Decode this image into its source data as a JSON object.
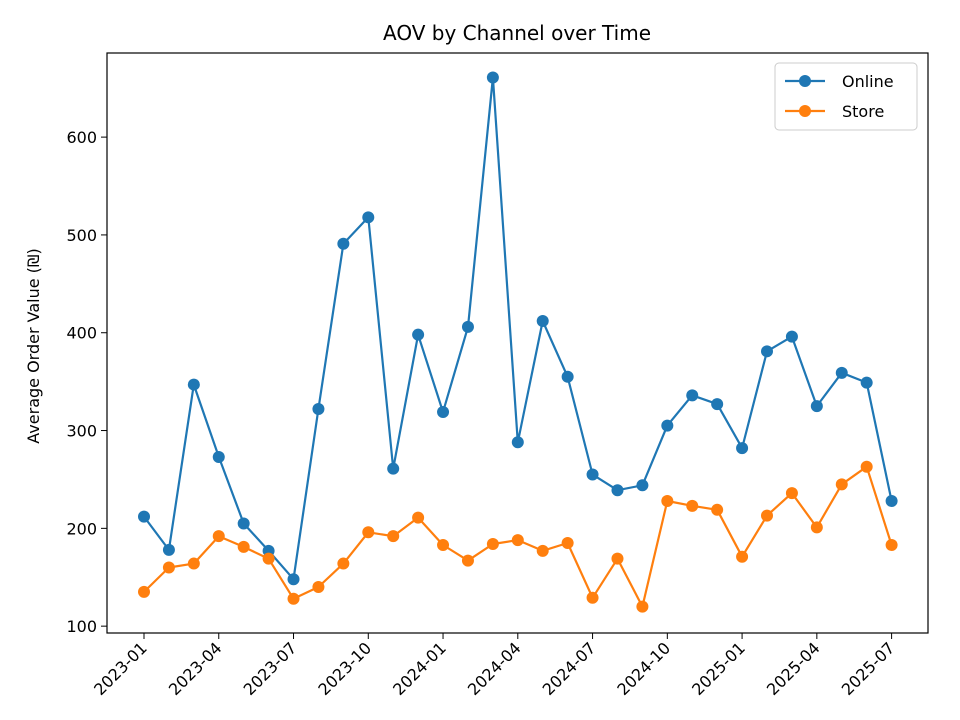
{
  "chart_data": {
    "type": "line",
    "title": "AOV by Channel over Time",
    "xlabel": "",
    "ylabel": "Average Order Value (₪)",
    "x": [
      "2023-01",
      "2023-02",
      "2023-03",
      "2023-04",
      "2023-05",
      "2023-06",
      "2023-07",
      "2023-08",
      "2023-09",
      "2023-10",
      "2023-11",
      "2023-12",
      "2024-01",
      "2024-02",
      "2024-03",
      "2024-04",
      "2024-05",
      "2024-06",
      "2024-07",
      "2024-08",
      "2024-09",
      "2024-10",
      "2024-11",
      "2024-12",
      "2025-01",
      "2025-02",
      "2025-03",
      "2025-04",
      "2025-05",
      "2025-06",
      "2025-07"
    ],
    "x_ticks": [
      "2023-01",
      "2023-04",
      "2023-07",
      "2023-10",
      "2024-01",
      "2024-04",
      "2024-07",
      "2024-10",
      "2025-01",
      "2025-04",
      "2025-07"
    ],
    "y_ticks": [
      100,
      200,
      300,
      400,
      500,
      600
    ],
    "ylim": [
      93,
      686
    ],
    "grid": false,
    "legend": "top-right",
    "series": [
      {
        "name": "Online",
        "color": "#1f77b4",
        "values": [
          212,
          178,
          347,
          273,
          205,
          177,
          148,
          322,
          491,
          518,
          261,
          398,
          319,
          406,
          661,
          288,
          412,
          355,
          255,
          239,
          244,
          305,
          336,
          327,
          282,
          381,
          396,
          325,
          359,
          349,
          228
        ]
      },
      {
        "name": "Store",
        "color": "#ff7f0e",
        "values": [
          135,
          160,
          164,
          192,
          181,
          169,
          128,
          140,
          164,
          196,
          192,
          211,
          183,
          167,
          184,
          188,
          177,
          185,
          129,
          169,
          120,
          228,
          223,
          219,
          171,
          213,
          236,
          201,
          245,
          263,
          183
        ]
      }
    ]
  }
}
